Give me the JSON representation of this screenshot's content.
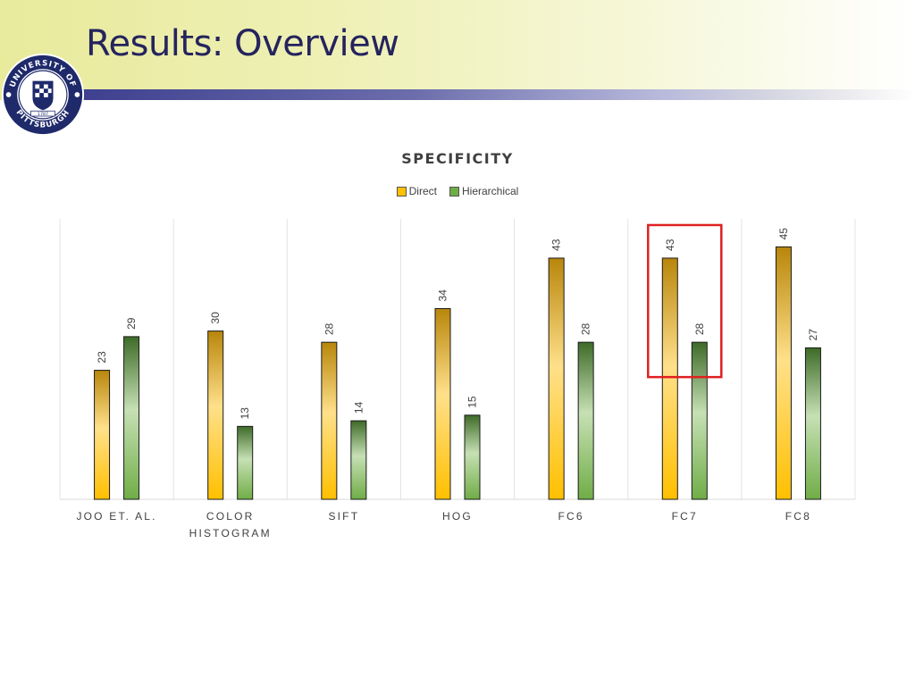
{
  "slide": {
    "title": "Results: Overview"
  },
  "logo": {
    "name": "university-seal",
    "text_top": "UNIVERSITY OF",
    "text_bottom": "PITTSBURGH",
    "year": "1787"
  },
  "colors": {
    "direct_light": "#ffe08a",
    "direct_mid": "#ffc000",
    "direct_dark": "#b8860b",
    "hier_light": "#c6e0b4",
    "hier_mid": "#70ad47",
    "hier_dark": "#3e6b28",
    "highlight": "#e02020",
    "title_band": "#eef0b4",
    "title_text": "#25245e"
  },
  "chart_data": {
    "type": "bar",
    "title": "SPECIFICITY",
    "xlabel": "",
    "ylabel": "",
    "categories": [
      "JOO ET. AL.",
      "COLOR HISTOGRAM",
      "SIFT",
      "HOG",
      "FC6",
      "FC7",
      "FC8"
    ],
    "series": [
      {
        "name": "Direct",
        "values": [
          23,
          30,
          28,
          34,
          43,
          43,
          45
        ]
      },
      {
        "name": "Hierarchical",
        "values": [
          29,
          13,
          14,
          15,
          28,
          28,
          27
        ]
      }
    ],
    "ylim": [
      0,
      50
    ],
    "grid": "vertical category separators",
    "legend": "top",
    "highlight_category": "FC7"
  }
}
